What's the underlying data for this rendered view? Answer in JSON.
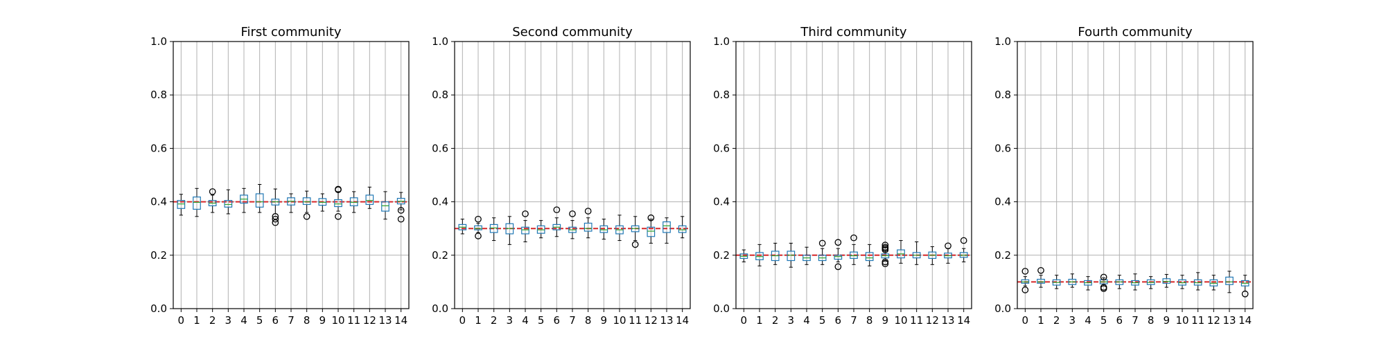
{
  "chart_data": [
    {
      "type": "box",
      "title": "First community",
      "x": [
        0,
        1,
        2,
        3,
        4,
        5,
        6,
        7,
        8,
        9,
        10,
        11,
        12,
        13,
        14
      ],
      "xticks": [
        "0",
        "1",
        "2",
        "3",
        "4",
        "5",
        "6",
        "7",
        "8",
        "9",
        "10",
        "11",
        "12",
        "13",
        "14"
      ],
      "ylim": [
        0,
        1.0
      ],
      "yticks": [
        "0.0",
        "0.2",
        "0.4",
        "0.6",
        "0.8",
        "1.0"
      ],
      "yticks_values": [
        0,
        0.2,
        0.4,
        0.6,
        0.8,
        1.0
      ],
      "grid": true,
      "reference_line": {
        "y": 0.4,
        "color": "#d62728",
        "style": "dashed"
      },
      "boxes": [
        {
          "whislo": 0.35,
          "q1": 0.375,
          "med": 0.392,
          "q3": 0.405,
          "whishi": 0.428,
          "fliers": []
        },
        {
          "whislo": 0.345,
          "q1": 0.372,
          "med": 0.398,
          "q3": 0.418,
          "whishi": 0.45,
          "fliers": []
        },
        {
          "whislo": 0.36,
          "q1": 0.385,
          "med": 0.395,
          "q3": 0.405,
          "whishi": 0.425,
          "fliers": [
            0.438
          ]
        },
        {
          "whislo": 0.355,
          "q1": 0.38,
          "med": 0.39,
          "q3": 0.405,
          "whishi": 0.445,
          "fliers": []
        },
        {
          "whislo": 0.36,
          "q1": 0.395,
          "med": 0.41,
          "q3": 0.425,
          "whishi": 0.45,
          "fliers": []
        },
        {
          "whislo": 0.36,
          "q1": 0.38,
          "med": 0.4,
          "q3": 0.43,
          "whishi": 0.465,
          "fliers": []
        },
        {
          "whislo": 0.355,
          "q1": 0.388,
          "med": 0.4,
          "q3": 0.41,
          "whishi": 0.448,
          "fliers": [
            0.345,
            0.335,
            0.322
          ]
        },
        {
          "whislo": 0.36,
          "q1": 0.388,
          "med": 0.402,
          "q3": 0.415,
          "whishi": 0.43,
          "fliers": []
        },
        {
          "whislo": 0.36,
          "q1": 0.39,
          "med": 0.4,
          "q3": 0.415,
          "whishi": 0.44,
          "fliers": [
            0.345
          ]
        },
        {
          "whislo": 0.365,
          "q1": 0.387,
          "med": 0.398,
          "q3": 0.412,
          "whishi": 0.43,
          "fliers": []
        },
        {
          "whislo": 0.365,
          "q1": 0.382,
          "med": 0.392,
          "q3": 0.408,
          "whishi": 0.438,
          "fliers": [
            0.345,
            0.447,
            0.445
          ]
        },
        {
          "whislo": 0.36,
          "q1": 0.385,
          "med": 0.398,
          "q3": 0.415,
          "whishi": 0.438,
          "fliers": []
        },
        {
          "whislo": 0.375,
          "q1": 0.39,
          "med": 0.405,
          "q3": 0.425,
          "whishi": 0.455,
          "fliers": []
        },
        {
          "whislo": 0.335,
          "q1": 0.365,
          "med": 0.385,
          "q3": 0.4,
          "whishi": 0.438,
          "fliers": []
        },
        {
          "whislo": 0.37,
          "q1": 0.392,
          "med": 0.402,
          "q3": 0.413,
          "whishi": 0.435,
          "fliers": [
            0.368,
            0.335
          ]
        }
      ]
    },
    {
      "type": "box",
      "title": "Second community",
      "x": [
        0,
        1,
        2,
        3,
        4,
        5,
        6,
        7,
        8,
        9,
        10,
        11,
        12,
        13,
        14
      ],
      "xticks": [
        "0",
        "1",
        "2",
        "3",
        "4",
        "5",
        "6",
        "7",
        "8",
        "9",
        "10",
        "11",
        "12",
        "13",
        "14"
      ],
      "ylim": [
        0,
        1.0
      ],
      "yticks": [
        "0.0",
        "0.2",
        "0.4",
        "0.6",
        "0.8",
        "1.0"
      ],
      "yticks_values": [
        0,
        0.2,
        0.4,
        0.6,
        0.8,
        1.0
      ],
      "grid": true,
      "reference_line": {
        "y": 0.3,
        "color": "#d62728",
        "style": "dashed"
      },
      "boxes": [
        {
          "whislo": 0.28,
          "q1": 0.295,
          "med": 0.305,
          "q3": 0.315,
          "whishi": 0.335,
          "fliers": []
        },
        {
          "whislo": 0.285,
          "q1": 0.295,
          "med": 0.3,
          "q3": 0.31,
          "whishi": 0.32,
          "fliers": [
            0.335,
            0.272
          ]
        },
        {
          "whislo": 0.255,
          "q1": 0.285,
          "med": 0.302,
          "q3": 0.315,
          "whishi": 0.34,
          "fliers": []
        },
        {
          "whislo": 0.24,
          "q1": 0.28,
          "med": 0.3,
          "q3": 0.318,
          "whishi": 0.345,
          "fliers": []
        },
        {
          "whislo": 0.25,
          "q1": 0.28,
          "med": 0.295,
          "q3": 0.305,
          "whishi": 0.33,
          "fliers": [
            0.355
          ]
        },
        {
          "whislo": 0.265,
          "q1": 0.282,
          "med": 0.295,
          "q3": 0.31,
          "whishi": 0.33,
          "fliers": []
        },
        {
          "whislo": 0.27,
          "q1": 0.295,
          "med": 0.305,
          "q3": 0.315,
          "whishi": 0.34,
          "fliers": [
            0.37
          ]
        },
        {
          "whislo": 0.262,
          "q1": 0.285,
          "med": 0.295,
          "q3": 0.305,
          "whishi": 0.33,
          "fliers": [
            0.355
          ]
        },
        {
          "whislo": 0.265,
          "q1": 0.29,
          "med": 0.3,
          "q3": 0.32,
          "whishi": 0.34,
          "fliers": [
            0.365
          ]
        },
        {
          "whislo": 0.26,
          "q1": 0.285,
          "med": 0.295,
          "q3": 0.31,
          "whishi": 0.335,
          "fliers": []
        },
        {
          "whislo": 0.255,
          "q1": 0.28,
          "med": 0.295,
          "q3": 0.31,
          "whishi": 0.35,
          "fliers": []
        },
        {
          "whislo": 0.255,
          "q1": 0.288,
          "med": 0.3,
          "q3": 0.31,
          "whishi": 0.345,
          "fliers": [
            0.24
          ]
        },
        {
          "whislo": 0.245,
          "q1": 0.27,
          "med": 0.29,
          "q3": 0.305,
          "whishi": 0.335,
          "fliers": [
            0.34
          ]
        },
        {
          "whislo": 0.245,
          "q1": 0.285,
          "med": 0.31,
          "q3": 0.325,
          "whishi": 0.34,
          "fliers": []
        },
        {
          "whislo": 0.265,
          "q1": 0.285,
          "med": 0.295,
          "q3": 0.31,
          "whishi": 0.345,
          "fliers": []
        }
      ]
    },
    {
      "type": "box",
      "title": "Third community",
      "x": [
        0,
        1,
        2,
        3,
        4,
        5,
        6,
        7,
        8,
        9,
        10,
        11,
        12,
        13,
        14
      ],
      "xticks": [
        "0",
        "1",
        "2",
        "3",
        "4",
        "5",
        "6",
        "7",
        "8",
        "9",
        "10",
        "11",
        "12",
        "13",
        "14"
      ],
      "ylim": [
        0,
        1.0
      ],
      "yticks": [
        "0.0",
        "0.2",
        "0.4",
        "0.6",
        "0.8",
        "1.0"
      ],
      "yticks_values": [
        0,
        0.2,
        0.4,
        0.6,
        0.8,
        1.0
      ],
      "grid": true,
      "reference_line": {
        "y": 0.2,
        "color": "#d62728",
        "style": "dashed"
      },
      "boxes": [
        {
          "whislo": 0.175,
          "q1": 0.188,
          "med": 0.196,
          "q3": 0.205,
          "whishi": 0.22,
          "fliers": []
        },
        {
          "whislo": 0.16,
          "q1": 0.183,
          "med": 0.195,
          "q3": 0.21,
          "whishi": 0.24,
          "fliers": []
        },
        {
          "whislo": 0.165,
          "q1": 0.18,
          "med": 0.198,
          "q3": 0.215,
          "whishi": 0.245,
          "fliers": []
        },
        {
          "whislo": 0.155,
          "q1": 0.18,
          "med": 0.2,
          "q3": 0.215,
          "whishi": 0.245,
          "fliers": []
        },
        {
          "whislo": 0.165,
          "q1": 0.18,
          "med": 0.19,
          "q3": 0.2,
          "whishi": 0.23,
          "fliers": []
        },
        {
          "whislo": 0.165,
          "q1": 0.18,
          "med": 0.19,
          "q3": 0.2,
          "whishi": 0.225,
          "fliers": [
            0.245
          ]
        },
        {
          "whislo": 0.175,
          "q1": 0.185,
          "med": 0.195,
          "q3": 0.2,
          "whishi": 0.225,
          "fliers": [
            0.248,
            0.157
          ]
        },
        {
          "whislo": 0.165,
          "q1": 0.188,
          "med": 0.198,
          "q3": 0.212,
          "whishi": 0.24,
          "fliers": [
            0.265
          ]
        },
        {
          "whislo": 0.16,
          "q1": 0.18,
          "med": 0.19,
          "q3": 0.21,
          "whishi": 0.24,
          "fliers": []
        },
        {
          "whislo": 0.18,
          "q1": 0.19,
          "med": 0.198,
          "q3": 0.205,
          "whishi": 0.22,
          "fliers": [
            0.238,
            0.23,
            0.225,
            0.22,
            0.175,
            0.168
          ]
        },
        {
          "whislo": 0.17,
          "q1": 0.19,
          "med": 0.205,
          "q3": 0.22,
          "whishi": 0.255,
          "fliers": []
        },
        {
          "whislo": 0.165,
          "q1": 0.19,
          "med": 0.2,
          "q3": 0.21,
          "whishi": 0.25,
          "fliers": []
        },
        {
          "whislo": 0.165,
          "q1": 0.188,
          "med": 0.2,
          "q3": 0.212,
          "whishi": 0.232,
          "fliers": []
        },
        {
          "whislo": 0.17,
          "q1": 0.19,
          "med": 0.198,
          "q3": 0.208,
          "whishi": 0.225,
          "fliers": [
            0.235
          ]
        },
        {
          "whislo": 0.175,
          "q1": 0.192,
          "med": 0.2,
          "q3": 0.21,
          "whishi": 0.225,
          "fliers": [
            0.255
          ]
        }
      ]
    },
    {
      "type": "box",
      "title": "Fourth community",
      "x": [
        0,
        1,
        2,
        3,
        4,
        5,
        6,
        7,
        8,
        9,
        10,
        11,
        12,
        13,
        14
      ],
      "xticks": [
        "0",
        "1",
        "2",
        "3",
        "4",
        "5",
        "6",
        "7",
        "8",
        "9",
        "10",
        "11",
        "12",
        "13",
        "14"
      ],
      "ylim": [
        0,
        1.0
      ],
      "yticks": [
        "0.0",
        "0.2",
        "0.4",
        "0.6",
        "0.8",
        "1.0"
      ],
      "yticks_values": [
        0,
        0.2,
        0.4,
        0.6,
        0.8,
        1.0
      ],
      "grid": true,
      "reference_line": {
        "y": 0.1,
        "color": "#d62728",
        "style": "dashed"
      },
      "boxes": [
        {
          "whislo": 0.085,
          "q1": 0.095,
          "med": 0.1,
          "q3": 0.108,
          "whishi": 0.12,
          "fliers": [
            0.14,
            0.07
          ]
        },
        {
          "whislo": 0.08,
          "q1": 0.095,
          "med": 0.1,
          "q3": 0.11,
          "whishi": 0.125,
          "fliers": [
            0.143
          ]
        },
        {
          "whislo": 0.075,
          "q1": 0.088,
          "med": 0.098,
          "q3": 0.108,
          "whishi": 0.125,
          "fliers": []
        },
        {
          "whislo": 0.08,
          "q1": 0.09,
          "med": 0.1,
          "q3": 0.11,
          "whishi": 0.13,
          "fliers": []
        },
        {
          "whislo": 0.07,
          "q1": 0.088,
          "med": 0.097,
          "q3": 0.105,
          "whishi": 0.12,
          "fliers": []
        },
        {
          "whislo": 0.085,
          "q1": 0.093,
          "med": 0.1,
          "q3": 0.108,
          "whishi": 0.115,
          "fliers": [
            0.118,
            0.08,
            0.075
          ]
        },
        {
          "whislo": 0.075,
          "q1": 0.09,
          "med": 0.1,
          "q3": 0.108,
          "whishi": 0.125,
          "fliers": []
        },
        {
          "whislo": 0.07,
          "q1": 0.088,
          "med": 0.097,
          "q3": 0.105,
          "whishi": 0.13,
          "fliers": []
        },
        {
          "whislo": 0.075,
          "q1": 0.09,
          "med": 0.098,
          "q3": 0.108,
          "whishi": 0.12,
          "fliers": []
        },
        {
          "whislo": 0.08,
          "q1": 0.095,
          "med": 0.102,
          "q3": 0.112,
          "whishi": 0.128,
          "fliers": []
        },
        {
          "whislo": 0.075,
          "q1": 0.088,
          "med": 0.097,
          "q3": 0.108,
          "whishi": 0.125,
          "fliers": []
        },
        {
          "whislo": 0.07,
          "q1": 0.088,
          "med": 0.097,
          "q3": 0.108,
          "whishi": 0.135,
          "fliers": []
        },
        {
          "whislo": 0.07,
          "q1": 0.085,
          "med": 0.095,
          "q3": 0.108,
          "whishi": 0.125,
          "fliers": []
        },
        {
          "whislo": 0.06,
          "q1": 0.09,
          "med": 0.1,
          "q3": 0.118,
          "whishi": 0.14,
          "fliers": []
        },
        {
          "whislo": 0.065,
          "q1": 0.085,
          "med": 0.095,
          "q3": 0.105,
          "whishi": 0.125,
          "fliers": [
            0.055
          ]
        }
      ]
    }
  ],
  "colors": {
    "box": "#1f77b4",
    "median": "#2ca02c",
    "reference": "#d62728",
    "grid": "#b0b0b0",
    "axis": "#000000"
  }
}
